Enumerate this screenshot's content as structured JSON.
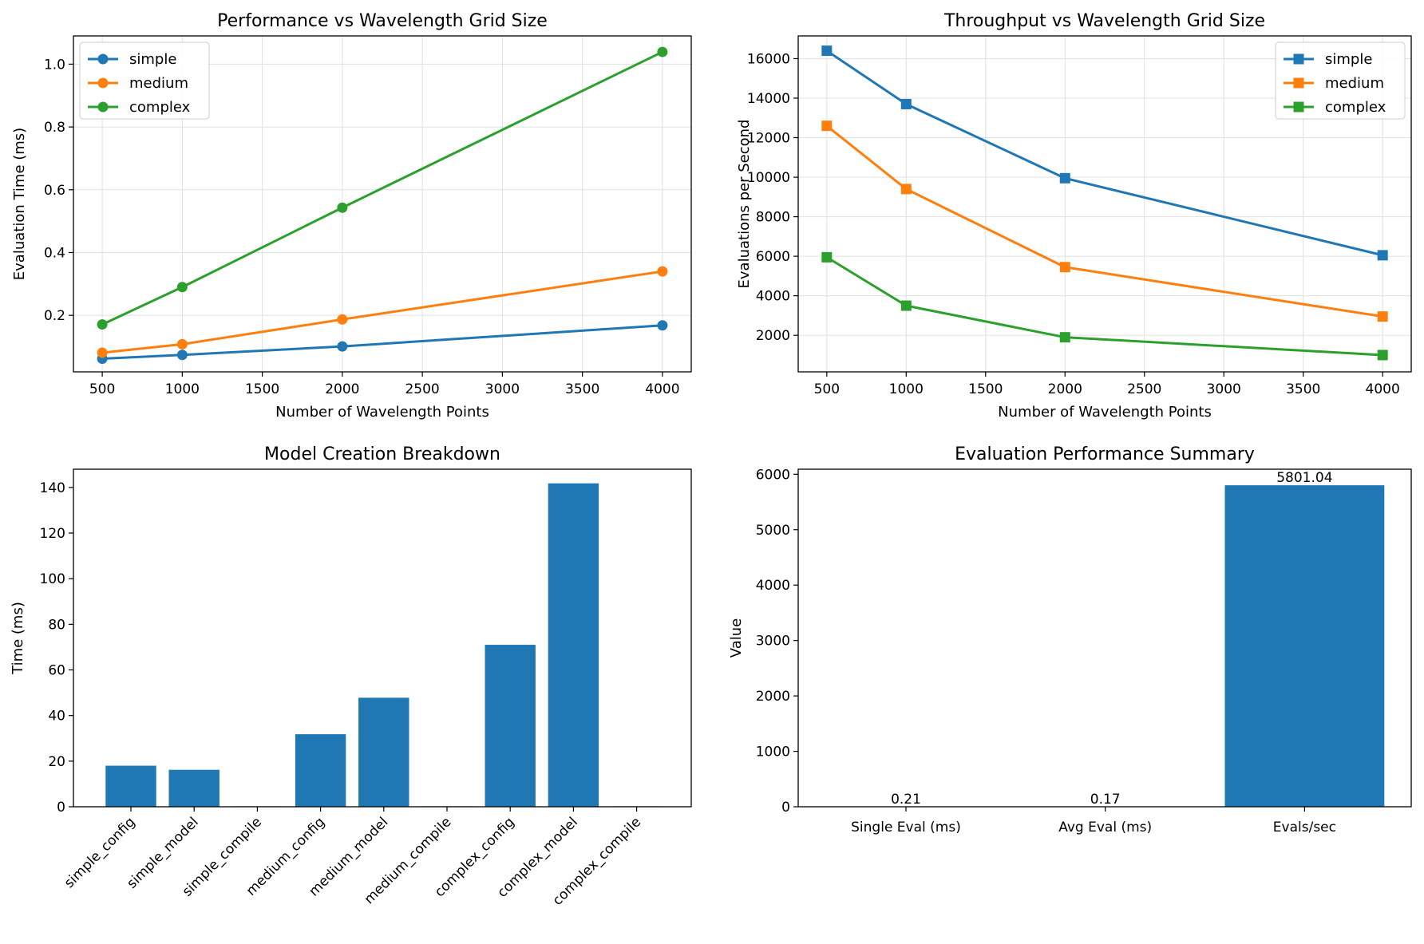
{
  "colors": {
    "simple": "#1f77b4",
    "medium": "#ff7f0e",
    "complex": "#2ca02c",
    "bar": "#1f77b4",
    "grid": "#e0e0e0"
  },
  "chart_data": [
    {
      "id": "perf",
      "type": "line",
      "title": "Performance vs Wavelength Grid Size",
      "xlabel": "Number of Wavelength Points",
      "ylabel": "Evaluation Time (ms)",
      "xlim": [
        320,
        4180
      ],
      "ylim": [
        0.02,
        1.09
      ],
      "xticks": [
        500,
        1000,
        1500,
        2000,
        2500,
        3000,
        3500,
        4000
      ],
      "xtick_labels": [
        "500",
        "1000",
        "1500",
        "2000",
        "2500",
        "3000",
        "3500",
        "4000"
      ],
      "yticks": [
        0.2,
        0.4,
        0.6,
        0.8,
        1.0
      ],
      "ytick_labels": [
        "0.2",
        "0.4",
        "0.6",
        "0.8",
        "1.0"
      ],
      "grid": true,
      "legend": "upper-left",
      "marker": "circle",
      "x": [
        500,
        1000,
        2000,
        4000
      ],
      "series": [
        {
          "name": "simple",
          "color_key": "simple",
          "values": [
            0.062,
            0.074,
            0.101,
            0.168
          ]
        },
        {
          "name": "medium",
          "color_key": "medium",
          "values": [
            0.081,
            0.108,
            0.187,
            0.34
          ]
        },
        {
          "name": "complex",
          "color_key": "complex",
          "values": [
            0.171,
            0.29,
            0.543,
            1.039
          ]
        }
      ]
    },
    {
      "id": "thru",
      "type": "line",
      "title": "Throughput vs Wavelength Grid Size",
      "xlabel": "Number of Wavelength Points",
      "ylabel": "Evaluations per Second",
      "xlim": [
        320,
        4180
      ],
      "ylim": [
        150,
        17150
      ],
      "xticks": [
        500,
        1000,
        1500,
        2000,
        2500,
        3000,
        3500,
        4000
      ],
      "xtick_labels": [
        "500",
        "1000",
        "1500",
        "2000",
        "2500",
        "3000",
        "3500",
        "4000"
      ],
      "yticks": [
        2000,
        4000,
        6000,
        8000,
        10000,
        12000,
        14000,
        16000
      ],
      "ytick_labels": [
        "2000",
        "4000",
        "6000",
        "8000",
        "10000",
        "12000",
        "14000",
        "16000"
      ],
      "grid": true,
      "legend": "upper-right",
      "marker": "square",
      "x": [
        500,
        1000,
        2000,
        4000
      ],
      "series": [
        {
          "name": "simple",
          "color_key": "simple",
          "values": [
            16400,
            13700,
            9950,
            6050
          ]
        },
        {
          "name": "medium",
          "color_key": "medium",
          "values": [
            12600,
            9400,
            5450,
            2950
          ]
        },
        {
          "name": "complex",
          "color_key": "complex",
          "values": [
            5950,
            3500,
            1900,
            1000
          ]
        }
      ]
    },
    {
      "id": "breakdown",
      "type": "bar",
      "title": "Model Creation Breakdown",
      "xlabel": "",
      "ylabel": "Time (ms)",
      "ylim": [
        0,
        148
      ],
      "yticks": [
        0,
        20,
        40,
        60,
        80,
        100,
        120,
        140
      ],
      "ytick_labels": [
        "0",
        "20",
        "40",
        "60",
        "80",
        "100",
        "120",
        "140"
      ],
      "grid": false,
      "categories": [
        "simple_config",
        "simple_model",
        "simple_compile",
        "medium_config",
        "medium_model",
        "medium_compile",
        "complex_config",
        "complex_model",
        "complex_compile"
      ],
      "values": [
        18,
        16.2,
        0.2,
        31.8,
        47.8,
        0.2,
        71,
        141.8,
        0.2
      ]
    },
    {
      "id": "summary",
      "type": "bar",
      "title": "Evaluation Performance Summary",
      "xlabel": "",
      "ylabel": "Value",
      "ylim": [
        0,
        6091
      ],
      "yticks": [
        0,
        1000,
        2000,
        3000,
        4000,
        5000,
        6000
      ],
      "ytick_labels": [
        "0",
        "1000",
        "2000",
        "3000",
        "4000",
        "5000",
        "6000"
      ],
      "grid": false,
      "categories": [
        "Single Eval (ms)",
        "Avg Eval (ms)",
        "Evals/sec"
      ],
      "values": [
        0.21,
        0.17,
        5801.04
      ],
      "data_labels": [
        "0.21",
        "0.17",
        "5801.04"
      ]
    }
  ]
}
